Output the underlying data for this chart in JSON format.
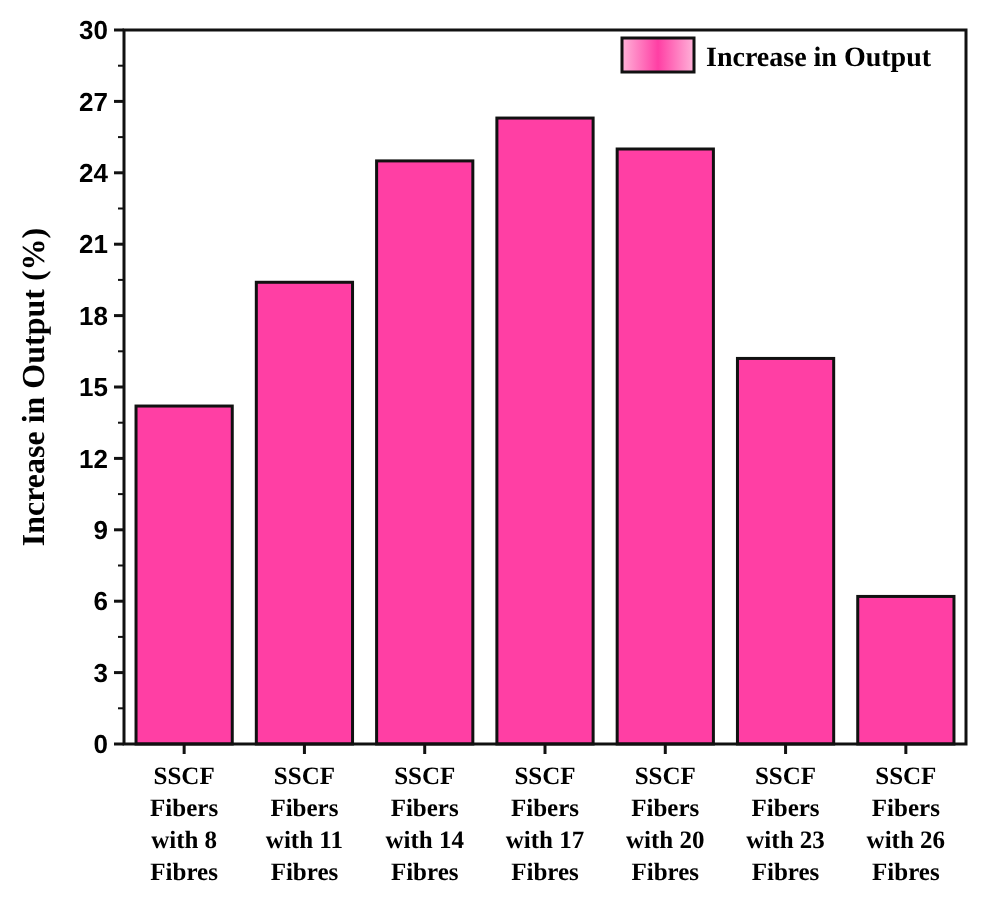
{
  "chart_data": {
    "type": "bar",
    "ylabel": "Increase in Output (%)",
    "categories": [
      "SSCF Fibers with 8 Fibres",
      "SSCF Fibers with 11 Fibres",
      "SSCF Fibers with 14 Fibres",
      "SSCF Fibers with 17 Fibres",
      "SSCF Fibers with 20 Fibres",
      "SSCF Fibers with 23 Fibres",
      "SSCF Fibers with 26 Fibres"
    ],
    "series": [
      {
        "name": "Increase in Output",
        "color": "#ff3fa4",
        "values": [
          14.2,
          19.4,
          24.5,
          26.3,
          25.0,
          16.2,
          6.2
        ]
      }
    ],
    "ylim": [
      0,
      30
    ],
    "yticks": [
      0,
      3,
      6,
      9,
      12,
      15,
      18,
      21,
      24,
      27,
      30
    ],
    "grid": false,
    "legend": "top right"
  }
}
